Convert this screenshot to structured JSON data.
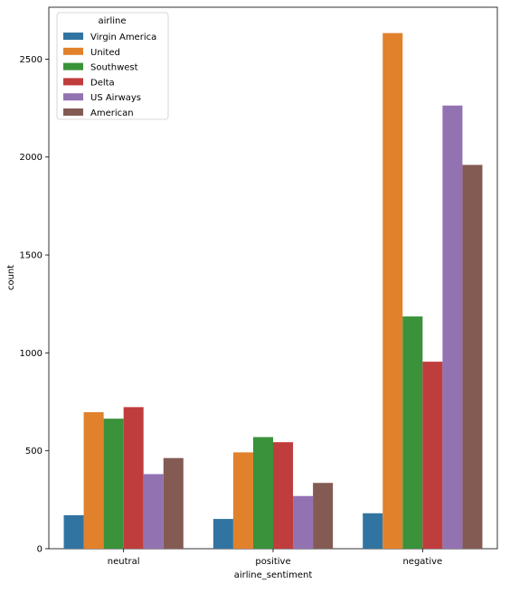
{
  "chart_data": {
    "type": "bar",
    "categories": [
      "neutral",
      "positive",
      "negative"
    ],
    "series": [
      {
        "name": "Virgin America",
        "color": "#3274a1",
        "values": [
          171,
          152,
          181
        ]
      },
      {
        "name": "United",
        "color": "#e1812c",
        "values": [
          697,
          492,
          2633
        ]
      },
      {
        "name": "Southwest",
        "color": "#3a923a",
        "values": [
          664,
          570,
          1186
        ]
      },
      {
        "name": "Delta",
        "color": "#c03d3e",
        "values": [
          723,
          544,
          955
        ]
      },
      {
        "name": "US Airways",
        "color": "#9372b2",
        "values": [
          381,
          269,
          2263
        ]
      },
      {
        "name": "American",
        "color": "#845b53",
        "values": [
          463,
          336,
          1960
        ]
      }
    ],
    "xlabel": "airline_sentiment",
    "ylabel": "count",
    "ylim": [
      0,
      2765
    ],
    "yticks": [
      0,
      500,
      1000,
      1500,
      2000,
      2500
    ],
    "legend": {
      "title": "airline",
      "placement": "top-left"
    },
    "grid": false
  }
}
